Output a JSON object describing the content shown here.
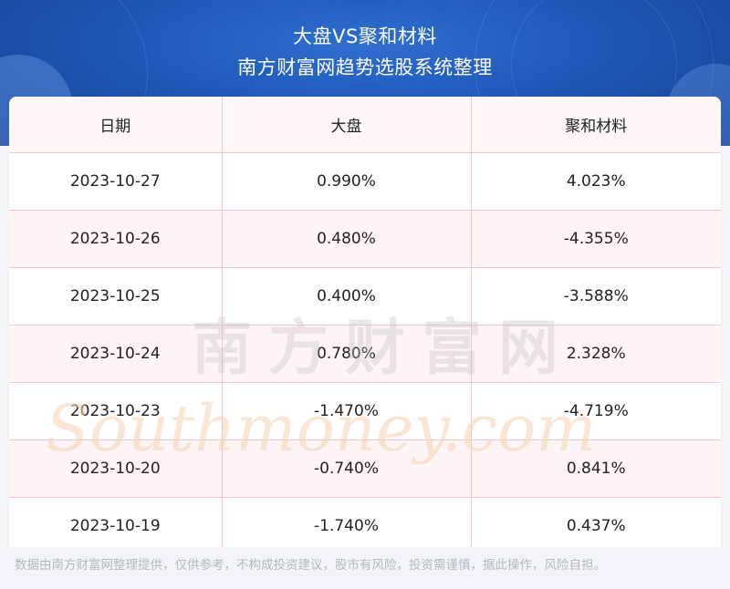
{
  "header": {
    "title": "大盘VS聚和材料",
    "subtitle": "南方财富网趋势选股系统整理"
  },
  "table": {
    "columns": [
      "日期",
      "大盘",
      "聚和材料"
    ],
    "rows": [
      [
        "2023-10-27",
        "0.990%",
        "4.023%"
      ],
      [
        "2023-10-26",
        "0.480%",
        "-4.355%"
      ],
      [
        "2023-10-25",
        "0.400%",
        "-3.588%"
      ],
      [
        "2023-10-24",
        "0.780%",
        "2.328%"
      ],
      [
        "2023-10-23",
        "-1.470%",
        "-4.719%"
      ],
      [
        "2023-10-20",
        "-0.740%",
        "0.841%"
      ],
      [
        "2023-10-19",
        "-1.740%",
        "0.437%"
      ]
    ]
  },
  "watermark": {
    "cn": "南方财富网",
    "en": "Southmoney.com"
  },
  "footer": {
    "disclaimer": "数据由南方财富网整理提供，仅供参考，不构成投资建议，股市有风险，投资需谨慎，据此操作，风险自担。"
  },
  "colors": {
    "header_blue": "#1f58b8",
    "grid_pink": "#f0c6cf",
    "watermark_orange": "#f6d2b0"
  }
}
